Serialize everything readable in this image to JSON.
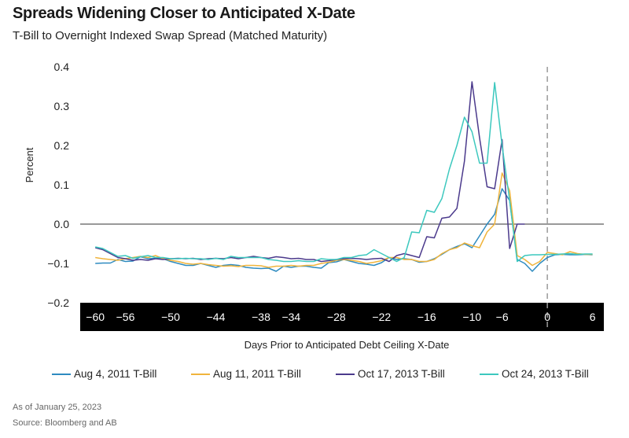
{
  "header": {
    "title": "Spreads Widening Closer to Anticipated X-Date",
    "subtitle": "T-Bill to Overnight Indexed Swap Spread (Matched Maturity)"
  },
  "footer": {
    "as_of": "As of January 25, 2023",
    "source": "Source: Bloomberg and AB"
  },
  "chart_data": {
    "type": "line",
    "xlabel": "Days Prior to Anticipated Debt Ceiling X-Date",
    "ylabel": "Percent",
    "xlim": [
      -62,
      7.5
    ],
    "ylim": [
      -0.2,
      0.4
    ],
    "xticks": [
      -60,
      -56,
      -50,
      -44,
      -38,
      -34,
      -28,
      -22,
      -16,
      -10,
      -6,
      0,
      6
    ],
    "xtick_labels": [
      "−60",
      "−56",
      "−50",
      "−44",
      "−38",
      "−34",
      "−28",
      "−22",
      "−16",
      "−10",
      "−6",
      "0",
      "6"
    ],
    "yticks": [
      -0.2,
      -0.1,
      0.0,
      0.1,
      0.2,
      0.3,
      0.4
    ],
    "ytick_labels": [
      "−0.2",
      "−0.1",
      "0.0",
      "0.1",
      "0.2",
      "0.3",
      "0.4"
    ],
    "x_date_marker": 0,
    "grid": false,
    "legend_position": "bottom",
    "series": [
      {
        "name": "Aug 4, 2011 T-Bill",
        "color": "#2e8bc0",
        "x": [
          -60,
          -59,
          -58,
          -57,
          -56,
          -55,
          -54,
          -53,
          -52,
          -51,
          -50,
          -49,
          -48,
          -47,
          -46,
          -45,
          -44,
          -43,
          -42,
          -41,
          -40,
          -39,
          -38,
          -37,
          -36,
          -35,
          -34,
          -33,
          -32,
          -31,
          -30,
          -29,
          -28,
          -27,
          -26,
          -25,
          -24,
          -23,
          -22,
          -21,
          -20,
          -19,
          -18,
          -17,
          -16,
          -15,
          -14,
          -13,
          -12,
          -11,
          -10,
          -9,
          -8,
          -7,
          -6,
          -5,
          -4,
          -3,
          -2,
          -1,
          0,
          1,
          2,
          3,
          4,
          5,
          6
        ],
        "y": [
          -0.1,
          -0.099,
          -0.099,
          -0.09,
          -0.095,
          -0.094,
          -0.083,
          -0.088,
          -0.087,
          -0.088,
          -0.095,
          -0.1,
          -0.105,
          -0.105,
          -0.1,
          -0.105,
          -0.11,
          -0.105,
          -0.103,
          -0.105,
          -0.11,
          -0.112,
          -0.113,
          -0.112,
          -0.12,
          -0.107,
          -0.11,
          -0.107,
          -0.107,
          -0.11,
          -0.112,
          -0.098,
          -0.096,
          -0.09,
          -0.095,
          -0.1,
          -0.102,
          -0.105,
          -0.098,
          -0.085,
          -0.09,
          -0.088,
          -0.09,
          -0.097,
          -0.095,
          -0.088,
          -0.077,
          -0.065,
          -0.057,
          -0.05,
          -0.06,
          -0.03,
          0.0,
          0.025,
          0.09,
          0.06,
          -0.09,
          -0.1,
          -0.12,
          -0.1,
          -0.085,
          -0.078,
          -0.077,
          -0.078,
          -0.078,
          -0.077,
          -0.078
        ]
      },
      {
        "name": "Aug 11, 2011 T-Bill",
        "color": "#f0b43c",
        "x": [
          -60,
          -59,
          -58,
          -57,
          -56,
          -55,
          -54,
          -53,
          -52,
          -51,
          -50,
          -49,
          -48,
          -47,
          -46,
          -45,
          -44,
          -43,
          -42,
          -41,
          -40,
          -39,
          -38,
          -37,
          -36,
          -35,
          -34,
          -33,
          -32,
          -31,
          -30,
          -29,
          -28,
          -27,
          -26,
          -25,
          -24,
          -23,
          -22,
          -21,
          -20,
          -19,
          -18,
          -17,
          -16,
          -15,
          -14,
          -13,
          -12,
          -11,
          -10,
          -9,
          -8,
          -7,
          -6,
          -5,
          -4,
          -3,
          -2,
          -1,
          0,
          1,
          2,
          3,
          4,
          5,
          6
        ],
        "y": [
          -0.085,
          -0.088,
          -0.09,
          -0.092,
          -0.088,
          -0.085,
          -0.082,
          -0.085,
          -0.08,
          -0.088,
          -0.092,
          -0.095,
          -0.1,
          -0.102,
          -0.1,
          -0.103,
          -0.105,
          -0.107,
          -0.106,
          -0.108,
          -0.105,
          -0.105,
          -0.106,
          -0.11,
          -0.107,
          -0.107,
          -0.105,
          -0.107,
          -0.105,
          -0.105,
          -0.1,
          -0.097,
          -0.092,
          -0.09,
          -0.092,
          -0.095,
          -0.1,
          -0.097,
          -0.093,
          -0.085,
          -0.085,
          -0.09,
          -0.09,
          -0.095,
          -0.095,
          -0.09,
          -0.075,
          -0.065,
          -0.06,
          -0.048,
          -0.055,
          -0.06,
          -0.02,
          0.0,
          0.13,
          0.085,
          -0.08,
          -0.09,
          -0.105,
          -0.095,
          -0.072,
          -0.075,
          -0.078,
          -0.07,
          -0.075,
          -0.077,
          -0.077
        ]
      },
      {
        "name": "Oct 17, 2013 T-Bill",
        "color": "#4b3a8c",
        "x": [
          -60,
          -59,
          -58,
          -57,
          -56,
          -55,
          -54,
          -53,
          -52,
          -51,
          -50,
          -49,
          -48,
          -47,
          -46,
          -45,
          -44,
          -43,
          -42,
          -41,
          -40,
          -39,
          -38,
          -37,
          -36,
          -35,
          -34,
          -33,
          -32,
          -31,
          -30,
          -29,
          -28,
          -27,
          -26,
          -25,
          -24,
          -23,
          -22,
          -21,
          -20,
          -19,
          -18,
          -17,
          -16,
          -15,
          -14,
          -13,
          -12,
          -11,
          -10,
          -9,
          -8,
          -7,
          -6,
          -5,
          -4,
          -3,
          -2
        ],
        "y": [
          -0.06,
          -0.065,
          -0.075,
          -0.085,
          -0.088,
          -0.092,
          -0.09,
          -0.092,
          -0.088,
          -0.09,
          -0.088,
          -0.087,
          -0.088,
          -0.087,
          -0.09,
          -0.088,
          -0.087,
          -0.088,
          -0.085,
          -0.088,
          -0.085,
          -0.082,
          -0.085,
          -0.087,
          -0.083,
          -0.085,
          -0.088,
          -0.087,
          -0.09,
          -0.09,
          -0.095,
          -0.093,
          -0.09,
          -0.088,
          -0.087,
          -0.088,
          -0.09,
          -0.088,
          -0.087,
          -0.095,
          -0.08,
          -0.075,
          -0.08,
          -0.085,
          -0.032,
          -0.035,
          0.015,
          0.018,
          0.04,
          0.16,
          0.362,
          0.22,
          0.095,
          0.09,
          0.215,
          -0.062,
          0,
          0,
          0
        ]
      },
      {
        "name": "Oct 24, 2013 T-Bill",
        "color": "#3cc8be",
        "x": [
          -60,
          -59,
          -58,
          -57,
          -56,
          -55,
          -54,
          -53,
          -52,
          -51,
          -50,
          -49,
          -48,
          -47,
          -46,
          -45,
          -44,
          -43,
          -42,
          -41,
          -40,
          -39,
          -38,
          -37,
          -36,
          -35,
          -34,
          -33,
          -32,
          -31,
          -30,
          -29,
          -28,
          -27,
          -26,
          -25,
          -24,
          -23,
          -22,
          -21,
          -20,
          -19,
          -18,
          -17,
          -16,
          -15,
          -14,
          -13,
          -12,
          -11,
          -10,
          -9,
          -8,
          -7,
          -6,
          -5,
          -4,
          -3,
          -2,
          -1,
          0,
          1,
          2,
          3,
          4,
          5,
          6
        ],
        "y": [
          -0.058,
          -0.062,
          -0.072,
          -0.082,
          -0.08,
          -0.087,
          -0.083,
          -0.08,
          -0.085,
          -0.085,
          -0.088,
          -0.088,
          -0.087,
          -0.088,
          -0.088,
          -0.09,
          -0.087,
          -0.09,
          -0.082,
          -0.085,
          -0.085,
          -0.085,
          -0.085,
          -0.09,
          -0.092,
          -0.095,
          -0.095,
          -0.093,
          -0.095,
          -0.095,
          -0.088,
          -0.09,
          -0.09,
          -0.085,
          -0.085,
          -0.08,
          -0.078,
          -0.065,
          -0.075,
          -0.085,
          -0.095,
          -0.085,
          -0.02,
          -0.022,
          0.035,
          0.03,
          0.065,
          0.14,
          0.2,
          0.272,
          0.235,
          0.155,
          0.155,
          0.36,
          0.2,
          0.06,
          -0.095,
          -0.08,
          -0.078,
          -0.078,
          -0.077,
          -0.077,
          -0.076,
          -0.075,
          -0.077,
          -0.076,
          -0.076
        ]
      }
    ]
  }
}
